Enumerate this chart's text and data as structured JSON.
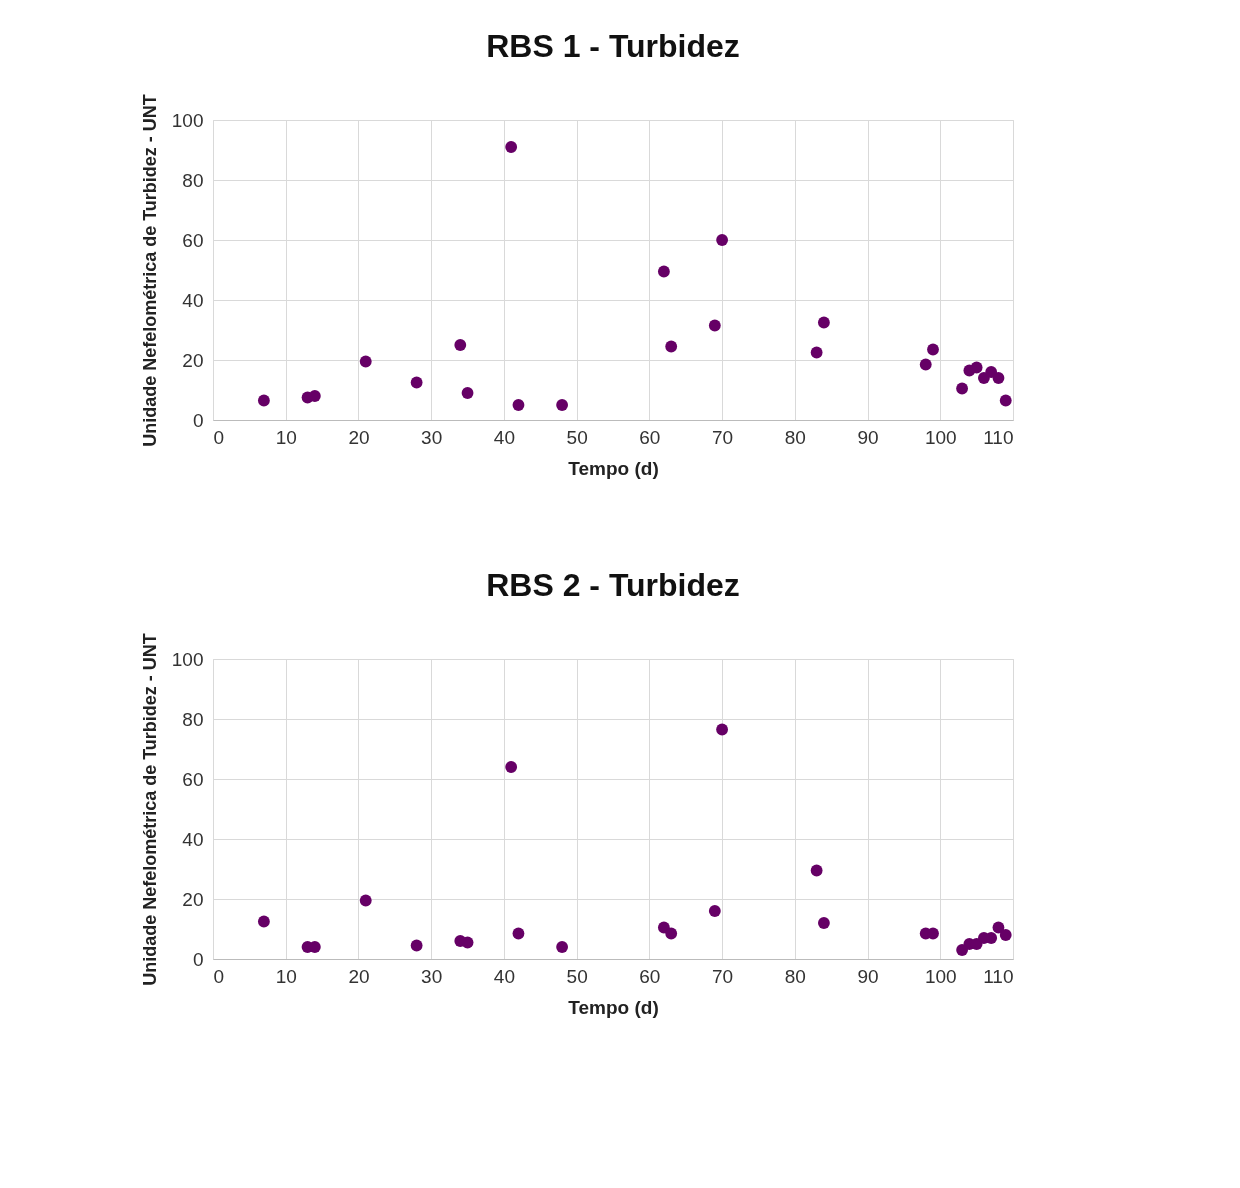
{
  "chart_data": [
    {
      "type": "scatter",
      "title": "RBS 1 - Turbidez",
      "xlabel": "Tempo (d)",
      "ylabel": "Unidade Nefelométrica de Turbidez - UNT",
      "xlim": [
        0,
        110
      ],
      "xticks": [
        0,
        10,
        20,
        30,
        40,
        50,
        60,
        70,
        80,
        90,
        100,
        110
      ],
      "ylim": [
        0,
        100
      ],
      "yticks": [
        0,
        20,
        40,
        60,
        80,
        100
      ],
      "grid": true,
      "marker": "circle",
      "series": [
        {
          "color": "#660066",
          "x": [
            7,
            13,
            14,
            21,
            28,
            34,
            35,
            41,
            42,
            48,
            62,
            63,
            69,
            70,
            83,
            84,
            98,
            99,
            103,
            104,
            105,
            106,
            107,
            108,
            109
          ],
          "values": [
            6.5,
            7.5,
            8,
            19.5,
            12.5,
            25,
            9,
            91,
            5,
            5,
            49.5,
            24.5,
            31.5,
            60,
            22.5,
            32.5,
            18.5,
            23.5,
            10.5,
            16.5,
            17.5,
            14,
            16,
            14,
            6.5
          ]
        }
      ]
    },
    {
      "type": "scatter",
      "title": "RBS 2 - Turbidez",
      "xlabel": "Tempo (d)",
      "ylabel": "Unidade Nefelométrica de Turbidez - UNT",
      "xlim": [
        0,
        110
      ],
      "xticks": [
        0,
        10,
        20,
        30,
        40,
        50,
        60,
        70,
        80,
        90,
        100,
        110
      ],
      "ylim": [
        0,
        100
      ],
      "yticks": [
        0,
        20,
        40,
        60,
        80,
        100
      ],
      "grid": true,
      "marker": "circle",
      "series": [
        {
          "color": "#660066",
          "x": [
            7,
            13,
            14,
            21,
            28,
            34,
            35,
            41,
            42,
            48,
            62,
            63,
            69,
            70,
            83,
            84,
            98,
            99,
            103,
            104,
            105,
            106,
            107,
            108,
            109
          ],
          "values": [
            12.5,
            4,
            4,
            19.5,
            4.5,
            6,
            5.5,
            64,
            8.5,
            4,
            10.5,
            8.5,
            16,
            76.5,
            29.5,
            12,
            8.5,
            8.5,
            3,
            5,
            5,
            7,
            7,
            10.5,
            8
          ]
        }
      ]
    }
  ]
}
